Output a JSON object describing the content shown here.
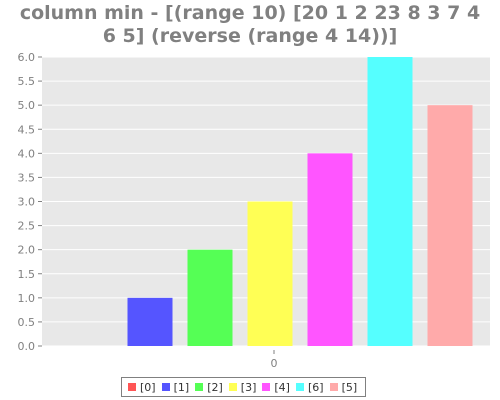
{
  "chart_data": {
    "type": "bar",
    "title": "column min - [(range 10) [20 1 2 23 8 3 7 4 6 5] (reverse (range 4 14))]",
    "title_lines": [
      "column min - [(range 10) [20 1 2 23 8 3 7 4",
      "6 5] (reverse (range 4 14))]"
    ],
    "categories": [
      "0"
    ],
    "series": [
      {
        "name": "[0]",
        "values": [
          0
        ],
        "color": "#ff5555"
      },
      {
        "name": "[1]",
        "values": [
          1
        ],
        "color": "#5555ff"
      },
      {
        "name": "[2]",
        "values": [
          2
        ],
        "color": "#55ff55"
      },
      {
        "name": "[3]",
        "values": [
          3
        ],
        "color": "#ffff55"
      },
      {
        "name": "[4]",
        "values": [
          4
        ],
        "color": "#ff55ff"
      },
      {
        "name": "[6]",
        "values": [
          6
        ],
        "color": "#55ffff"
      },
      {
        "name": "[5]",
        "values": [
          5
        ],
        "color": "#ffaaaa"
      }
    ],
    "xlabel": "",
    "ylabel": "",
    "ylim": [
      0,
      6.0
    ],
    "yticks": [
      "0.0",
      "0.5",
      "1.0",
      "1.5",
      "2.0",
      "2.5",
      "3.0",
      "3.5",
      "4.0",
      "4.5",
      "5.0",
      "5.5",
      "6.0"
    ],
    "grid": true,
    "plot_background": "#e8e8e8",
    "legend_position": "bottom"
  }
}
